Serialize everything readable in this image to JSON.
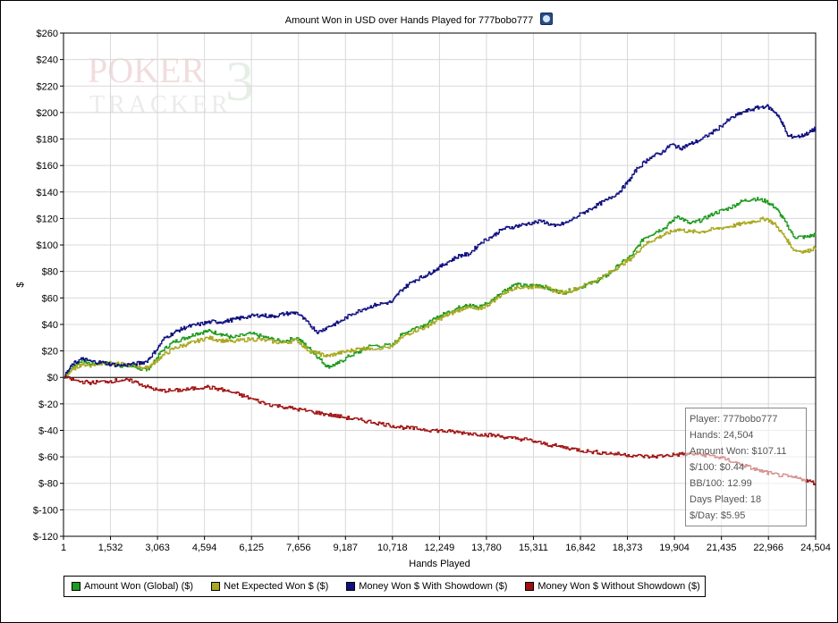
{
  "chart_data": {
    "type": "line",
    "title": "Amount Won in USD over Hands Played for 777bobo777",
    "xlabel": "Hands Played",
    "ylabel": "$",
    "xlim": [
      1,
      24504
    ],
    "ylim": [
      -120,
      260
    ],
    "x_ticks": [
      "1",
      "1,532",
      "3,063",
      "4,594",
      "6,125",
      "7,656",
      "9,187",
      "10,718",
      "12,249",
      "13,780",
      "15,311",
      "16,842",
      "18,373",
      "19,904",
      "21,435",
      "22,966",
      "24,504"
    ],
    "y_ticks": [
      "$-120",
      "$-100",
      "$-80",
      "$-60",
      "$-40",
      "$-20",
      "$0",
      "$20",
      "$40",
      "$60",
      "$80",
      "$100",
      "$120",
      "$140",
      "$160",
      "$180",
      "$200",
      "$220",
      "$240",
      "$260"
    ],
    "y_tick_values": [
      -120,
      -100,
      -80,
      -60,
      -40,
      -20,
      0,
      20,
      40,
      60,
      80,
      100,
      120,
      140,
      160,
      180,
      200,
      220,
      240,
      260
    ],
    "grid": true,
    "legend_position": "bottom",
    "series": [
      {
        "name": "Amount Won (Global) ($)",
        "color": "#1e9a1e",
        "points": [
          [
            1,
            0
          ],
          [
            300,
            8
          ],
          [
            600,
            13
          ],
          [
            900,
            10
          ],
          [
            1300,
            11
          ],
          [
            1800,
            9
          ],
          [
            2300,
            8
          ],
          [
            2700,
            5
          ],
          [
            2900,
            10
          ],
          [
            3200,
            20
          ],
          [
            3600,
            27
          ],
          [
            4000,
            30
          ],
          [
            4300,
            33
          ],
          [
            4700,
            35
          ],
          [
            5100,
            33
          ],
          [
            5500,
            30
          ],
          [
            6100,
            33
          ],
          [
            6600,
            30
          ],
          [
            7100,
            27
          ],
          [
            7600,
            30
          ],
          [
            8000,
            22
          ],
          [
            8300,
            15
          ],
          [
            8600,
            8
          ],
          [
            8900,
            10
          ],
          [
            9300,
            16
          ],
          [
            9700,
            20
          ],
          [
            10000,
            24
          ],
          [
            10700,
            24
          ],
          [
            11000,
            32
          ],
          [
            11400,
            37
          ],
          [
            11800,
            40
          ],
          [
            12100,
            44
          ],
          [
            12400,
            48
          ],
          [
            12800,
            52
          ],
          [
            13100,
            55
          ],
          [
            13500,
            53
          ],
          [
            13900,
            57
          ],
          [
            14300,
            65
          ],
          [
            14700,
            70
          ],
          [
            15100,
            69
          ],
          [
            15500,
            70
          ],
          [
            15900,
            66
          ],
          [
            16300,
            64
          ],
          [
            16800,
            68
          ],
          [
            17300,
            72
          ],
          [
            17700,
            77
          ],
          [
            18100,
            85
          ],
          [
            18500,
            92
          ],
          [
            18900,
            105
          ],
          [
            19300,
            110
          ],
          [
            19600,
            113
          ],
          [
            20000,
            122
          ],
          [
            20400,
            116
          ],
          [
            20800,
            119
          ],
          [
            21200,
            124
          ],
          [
            21700,
            128
          ],
          [
            22100,
            133
          ],
          [
            22500,
            135
          ],
          [
            22900,
            133
          ],
          [
            23200,
            128
          ],
          [
            23500,
            118
          ],
          [
            23800,
            106
          ],
          [
            24200,
            106
          ],
          [
            24504,
            108
          ]
        ]
      },
      {
        "name": "Net Expected Won $ ($)",
        "color": "#a8a820",
        "points": [
          [
            1,
            0
          ],
          [
            300,
            6
          ],
          [
            600,
            10
          ],
          [
            900,
            9
          ],
          [
            1300,
            11
          ],
          [
            1800,
            10
          ],
          [
            2300,
            9
          ],
          [
            2700,
            7
          ],
          [
            2900,
            10
          ],
          [
            3200,
            16
          ],
          [
            3600,
            22
          ],
          [
            4000,
            25
          ],
          [
            4300,
            27
          ],
          [
            4700,
            30
          ],
          [
            5100,
            28
          ],
          [
            5500,
            27
          ],
          [
            6100,
            29
          ],
          [
            6600,
            28
          ],
          [
            7100,
            26
          ],
          [
            7600,
            28
          ],
          [
            8000,
            20
          ],
          [
            8300,
            18
          ],
          [
            8600,
            16
          ],
          [
            8900,
            18
          ],
          [
            9300,
            20
          ],
          [
            9700,
            22
          ],
          [
            10000,
            22
          ],
          [
            10700,
            23
          ],
          [
            11000,
            30
          ],
          [
            11400,
            35
          ],
          [
            11800,
            38
          ],
          [
            12100,
            42
          ],
          [
            12400,
            46
          ],
          [
            12800,
            50
          ],
          [
            13100,
            53
          ],
          [
            13500,
            51
          ],
          [
            13900,
            56
          ],
          [
            14300,
            63
          ],
          [
            14700,
            68
          ],
          [
            15100,
            68
          ],
          [
            15500,
            69
          ],
          [
            15900,
            66
          ],
          [
            16300,
            64
          ],
          [
            16800,
            68
          ],
          [
            17300,
            73
          ],
          [
            17700,
            78
          ],
          [
            18100,
            84
          ],
          [
            18500,
            90
          ],
          [
            18900,
            100
          ],
          [
            19300,
            105
          ],
          [
            19600,
            108
          ],
          [
            20000,
            112
          ],
          [
            20400,
            110
          ],
          [
            20800,
            110
          ],
          [
            21200,
            112
          ],
          [
            21700,
            114
          ],
          [
            22100,
            116
          ],
          [
            22500,
            118
          ],
          [
            22900,
            120
          ],
          [
            23200,
            115
          ],
          [
            23500,
            106
          ],
          [
            23800,
            96
          ],
          [
            24200,
            95
          ],
          [
            24504,
            98
          ]
        ]
      },
      {
        "name": "Money Won $ With Showdown ($)",
        "color": "#101080",
        "points": [
          [
            1,
            0
          ],
          [
            300,
            10
          ],
          [
            600,
            14
          ],
          [
            900,
            12
          ],
          [
            1300,
            11
          ],
          [
            1800,
            9
          ],
          [
            2300,
            10
          ],
          [
            2700,
            12
          ],
          [
            3000,
            20
          ],
          [
            3300,
            30
          ],
          [
            3700,
            35
          ],
          [
            4000,
            38
          ],
          [
            4400,
            40
          ],
          [
            4800,
            42
          ],
          [
            5200,
            42
          ],
          [
            5600,
            44
          ],
          [
            6000,
            46
          ],
          [
            6400,
            47
          ],
          [
            6800,
            46
          ],
          [
            7200,
            48
          ],
          [
            7600,
            49
          ],
          [
            8000,
            40
          ],
          [
            8300,
            34
          ],
          [
            8600,
            38
          ],
          [
            9000,
            42
          ],
          [
            9400,
            48
          ],
          [
            9800,
            52
          ],
          [
            10200,
            55
          ],
          [
            10700,
            57
          ],
          [
            11000,
            66
          ],
          [
            11400,
            73
          ],
          [
            11800,
            77
          ],
          [
            12100,
            81
          ],
          [
            12500,
            87
          ],
          [
            12900,
            92
          ],
          [
            13200,
            93
          ],
          [
            13600,
            102
          ],
          [
            14000,
            107
          ],
          [
            14300,
            112
          ],
          [
            14700,
            114
          ],
          [
            15100,
            116
          ],
          [
            15600,
            118
          ],
          [
            16000,
            114
          ],
          [
            16400,
            117
          ],
          [
            16900,
            124
          ],
          [
            17300,
            129
          ],
          [
            17700,
            134
          ],
          [
            18100,
            140
          ],
          [
            18400,
            148
          ],
          [
            18700,
            158
          ],
          [
            19100,
            166
          ],
          [
            19500,
            170
          ],
          [
            19800,
            176
          ],
          [
            20100,
            173
          ],
          [
            20400,
            176
          ],
          [
            20800,
            180
          ],
          [
            21200,
            186
          ],
          [
            21700,
            195
          ],
          [
            22100,
            200
          ],
          [
            22500,
            203
          ],
          [
            22900,
            205
          ],
          [
            23200,
            200
          ],
          [
            23400,
            193
          ],
          [
            23600,
            182
          ],
          [
            24000,
            182
          ],
          [
            24300,
            185
          ],
          [
            24504,
            188
          ]
        ]
      },
      {
        "name": "Money Won $ Without Showdown ($)",
        "color": "#a01010",
        "points": [
          [
            1,
            0
          ],
          [
            500,
            -3
          ],
          [
            900,
            -4
          ],
          [
            1400,
            -3
          ],
          [
            1900,
            -2
          ],
          [
            2300,
            -3
          ],
          [
            2700,
            -7
          ],
          [
            3100,
            -10
          ],
          [
            3600,
            -10
          ],
          [
            4100,
            -9
          ],
          [
            4600,
            -7
          ],
          [
            5100,
            -9
          ],
          [
            5600,
            -12
          ],
          [
            6100,
            -16
          ],
          [
            6600,
            -20
          ],
          [
            7100,
            -22
          ],
          [
            7600,
            -24
          ],
          [
            8100,
            -26
          ],
          [
            8600,
            -28
          ],
          [
            9100,
            -30
          ],
          [
            9600,
            -32
          ],
          [
            10100,
            -34
          ],
          [
            10600,
            -36
          ],
          [
            11100,
            -38
          ],
          [
            11600,
            -39
          ],
          [
            12100,
            -40
          ],
          [
            12600,
            -41
          ],
          [
            13100,
            -42
          ],
          [
            13600,
            -43
          ],
          [
            14100,
            -44
          ],
          [
            14600,
            -46
          ],
          [
            15100,
            -47
          ],
          [
            15600,
            -50
          ],
          [
            16100,
            -52
          ],
          [
            16600,
            -54
          ],
          [
            17100,
            -56
          ],
          [
            17600,
            -57
          ],
          [
            18100,
            -58
          ],
          [
            18600,
            -59
          ],
          [
            19100,
            -60
          ],
          [
            19600,
            -59
          ],
          [
            20100,
            -58
          ],
          [
            20600,
            -58
          ],
          [
            21100,
            -59
          ],
          [
            21600,
            -62
          ],
          [
            22100,
            -66
          ],
          [
            22600,
            -70
          ],
          [
            23100,
            -73
          ],
          [
            23600,
            -75
          ],
          [
            24100,
            -77
          ],
          [
            24504,
            -80
          ]
        ]
      }
    ]
  },
  "watermark": {
    "line1": "POKER",
    "digit": "3",
    "line2": "TRACKER"
  },
  "info_box": {
    "player": "Player: 777bobo777",
    "hands": "Hands: 24,504",
    "amount_won": "Amount Won: $107.11",
    "per100": "$/100: $0.44",
    "bb100": "BB/100: 12.99",
    "days": "Days Played: 18",
    "per_day": "$/Day: $5.95"
  }
}
